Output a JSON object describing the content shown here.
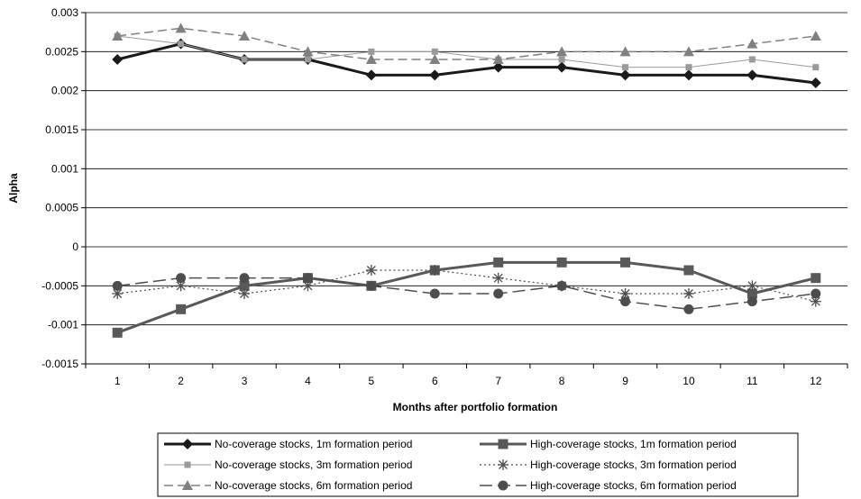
{
  "chart_data": {
    "type": "line",
    "title": "",
    "xlabel": "Months after portfolio formation",
    "ylabel": "Alpha",
    "x": [
      1,
      2,
      3,
      4,
      5,
      6,
      7,
      8,
      9,
      10,
      11,
      12
    ],
    "ylim": [
      -0.0015,
      0.003
    ],
    "yticks": [
      -0.0015,
      -0.001,
      -0.0005,
      0,
      0.0005,
      0.001,
      0.0015,
      0.002,
      0.0025,
      0.003
    ],
    "ytick_labels": [
      "-0.0015",
      "-0.001",
      "-0.0005",
      "0",
      "0.0005",
      "0.001",
      "0.0015",
      "0.002",
      "0.0025",
      "0.003"
    ],
    "xtick_labels": [
      "1",
      "2",
      "3",
      "4",
      "5",
      "6",
      "7",
      "8",
      "9",
      "10",
      "11",
      "12"
    ],
    "grid": "horizontal",
    "legend_position": "bottom",
    "series": [
      {
        "name": "No-coverage stocks, 1m formation period",
        "color": "#1a1a1a",
        "dash": "solid",
        "width": 3,
        "marker": "diamond",
        "values": [
          0.0024,
          0.0026,
          0.0024,
          0.0024,
          0.0022,
          0.0022,
          0.0023,
          0.0023,
          0.0022,
          0.0022,
          0.0022,
          0.0021
        ]
      },
      {
        "name": "High-coverage stocks, 1m formation period",
        "color": "#595959",
        "dash": "solid",
        "width": 3,
        "marker": "square",
        "values": [
          -0.0011,
          -0.0008,
          -0.0005,
          -0.0004,
          -0.0005,
          -0.0003,
          -0.0002,
          -0.0002,
          -0.0002,
          -0.0003,
          -0.0006,
          -0.0004
        ]
      },
      {
        "name": "No-coverage stocks, 3m formation period",
        "color": "#9a9a9a",
        "dash": "solid",
        "width": 1,
        "marker": "square-small",
        "values": [
          0.0027,
          0.0026,
          0.0024,
          0.0024,
          0.0025,
          0.0025,
          0.0024,
          0.0024,
          0.0023,
          0.0023,
          0.0024,
          0.0023
        ]
      },
      {
        "name": "High-coverage stocks, 3m formation period",
        "color": "#4d4d4d",
        "dash": "dotted",
        "width": 1.2,
        "marker": "asterisk",
        "values": [
          -0.0006,
          -0.0005,
          -0.0006,
          -0.0005,
          -0.0003,
          -0.0003,
          -0.0004,
          -0.0005,
          -0.0006,
          -0.0006,
          -0.0005,
          -0.0007
        ]
      },
      {
        "name": "No-coverage stocks, 6m formation period",
        "color": "#808080",
        "dash": "dashed",
        "width": 1.5,
        "marker": "triangle",
        "values": [
          0.0027,
          0.0028,
          0.0027,
          0.0025,
          0.0024,
          0.0024,
          0.0024,
          0.0025,
          0.0025,
          0.0025,
          0.0026,
          0.0027
        ]
      },
      {
        "name": "High-coverage stocks, 6m formation period",
        "color": "#4d4d4d",
        "dash": "longdash",
        "width": 1.5,
        "marker": "circle",
        "values": [
          -0.0005,
          -0.0004,
          -0.0004,
          -0.0004,
          -0.0005,
          -0.0006,
          -0.0006,
          -0.0005,
          -0.0007,
          -0.0008,
          -0.0007,
          -0.0006
        ]
      }
    ]
  }
}
